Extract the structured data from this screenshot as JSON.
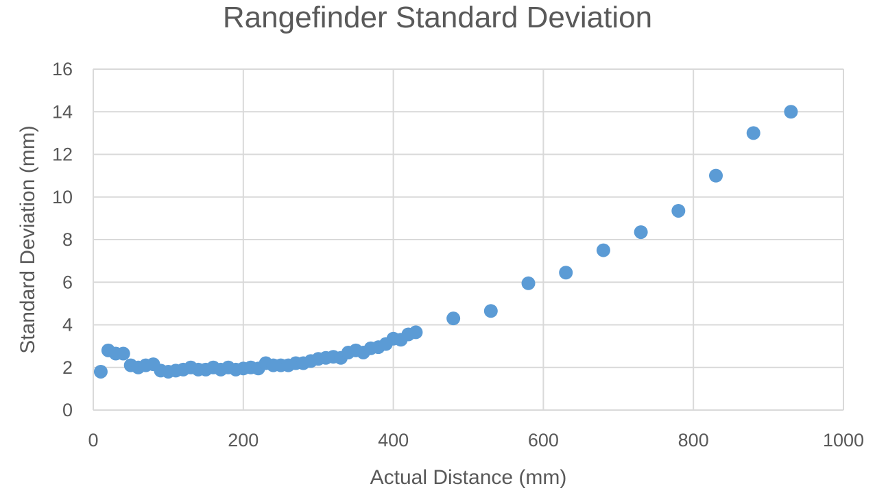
{
  "chart_data": {
    "type": "scatter",
    "title": "Rangefinder Standard Deviation",
    "xlabel": "Actual Distance (mm)",
    "ylabel": "Standard Deviation (mm)",
    "xlim": [
      0,
      1000
    ],
    "ylim": [
      0,
      16
    ],
    "x_ticks": [
      0,
      200,
      400,
      600,
      800,
      1000
    ],
    "y_ticks": [
      0,
      2,
      4,
      6,
      8,
      10,
      12,
      14,
      16
    ],
    "x_tick_labels": [
      "0",
      "200",
      "400",
      "600",
      "800",
      "1000"
    ],
    "y_tick_labels": [
      "0",
      "2",
      "4",
      "6",
      "8",
      "10",
      "12",
      "14",
      "16"
    ],
    "grid": true,
    "legend": "none",
    "marker_color": "#5b9bd5",
    "grid_color": "#d9d9d9",
    "text_color": "#595959",
    "series": [
      {
        "x": [
          10,
          20,
          30,
          40,
          50,
          60,
          70,
          80,
          90,
          100,
          110,
          120,
          130,
          140,
          150,
          160,
          170,
          180,
          190,
          200,
          210,
          220,
          230,
          240,
          250,
          260,
          270,
          280,
          290,
          300,
          310,
          320,
          330,
          340,
          350,
          360,
          370,
          380,
          390,
          400,
          410,
          420,
          430,
          480,
          530,
          580,
          630,
          680,
          730,
          780,
          830,
          880,
          930
        ],
        "y": [
          1.8,
          2.8,
          2.65,
          2.65,
          2.1,
          2.0,
          2.1,
          2.15,
          1.85,
          1.8,
          1.85,
          1.9,
          2.0,
          1.9,
          1.9,
          2.0,
          1.9,
          2.0,
          1.9,
          1.95,
          2.0,
          1.95,
          2.2,
          2.1,
          2.1,
          2.1,
          2.2,
          2.2,
          2.3,
          2.4,
          2.45,
          2.5,
          2.45,
          2.7,
          2.8,
          2.7,
          2.9,
          2.95,
          3.1,
          3.35,
          3.3,
          3.55,
          3.65,
          4.3,
          4.65,
          5.95,
          6.45,
          7.5,
          8.35,
          9.35,
          11.0,
          13.0,
          14.0
        ]
      }
    ]
  }
}
